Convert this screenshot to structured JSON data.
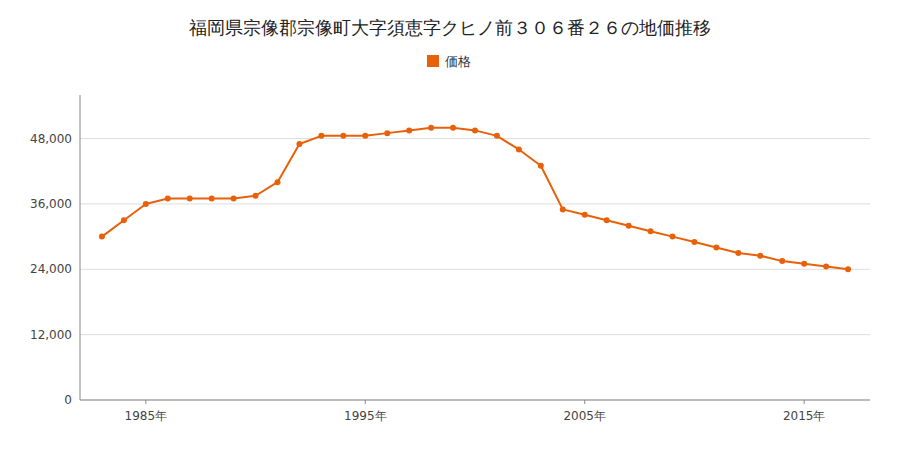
{
  "chart_data": {
    "type": "line",
    "title": "福岡県宗像郡宗像町大字須恵字クヒノ前３０６番２６の地価推移",
    "x": [
      1983,
      1984,
      1985,
      1986,
      1987,
      1988,
      1989,
      1990,
      1991,
      1992,
      1993,
      1994,
      1995,
      1996,
      1997,
      1998,
      1999,
      2000,
      2001,
      2002,
      2003,
      2004,
      2005,
      2006,
      2007,
      2008,
      2009,
      2010,
      2011,
      2012,
      2013,
      2014,
      2015,
      2016,
      2017
    ],
    "series": [
      {
        "name": "価格",
        "color": "#e8610a",
        "marker": "circle",
        "values": [
          30000,
          33000,
          36000,
          37000,
          37000,
          37000,
          37000,
          37500,
          40000,
          47000,
          48500,
          48500,
          48500,
          49000,
          49500,
          50000,
          50000,
          49500,
          48500,
          46000,
          43000,
          35000,
          34000,
          33000,
          32000,
          31000,
          30000,
          29000,
          28000,
          27000,
          26500,
          25500,
          25000,
          24500,
          24000
        ]
      }
    ],
    "xlim": [
      1982,
      2018
    ],
    "xticks": [
      {
        "value": 1985,
        "label": "1985年"
      },
      {
        "value": 1995,
        "label": "1995年"
      },
      {
        "value": 2005,
        "label": "2005年"
      },
      {
        "value": 2015,
        "label": "2015年"
      }
    ],
    "ylim": [
      0,
      56000
    ],
    "yticks": [
      0,
      {
        "value": 12000,
        "label": "12,000"
      },
      {
        "value": 24000,
        "label": "24,000"
      },
      {
        "value": 36000,
        "label": "36,000"
      },
      {
        "value": 48000,
        "label": "48,000"
      }
    ],
    "grid": "y",
    "legend": "top"
  }
}
